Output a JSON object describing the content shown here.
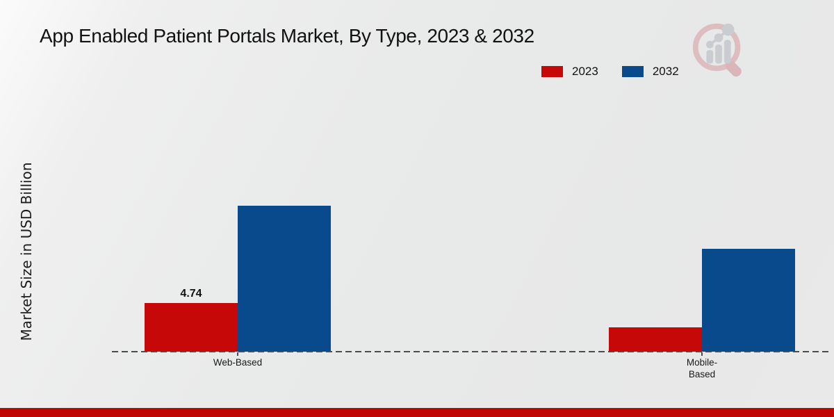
{
  "title": "App Enabled Patient Portals Market, By Type, 2023 & 2032",
  "ylabel": "Market Size in USD Billion",
  "legend": {
    "items": [
      {
        "label": "2023",
        "color": "#c70808"
      },
      {
        "label": "2032",
        "color": "#084a8c"
      }
    ]
  },
  "icons": {
    "logo": "magnifier-bar-chart-watermark"
  },
  "colors": {
    "series_2023": "#c70808",
    "series_2032": "#084a8c",
    "footer_bar": "#c00505",
    "axis": "#4b4b4b"
  },
  "chart_data": {
    "type": "bar",
    "title": "App Enabled Patient Portals Market, By Type, 2023 & 2032",
    "ylabel": "Market Size in USD Billion",
    "xlabel": "",
    "categories": [
      "Web-Based",
      "Mobile-Based"
    ],
    "series": [
      {
        "name": "2023",
        "color": "#c70808",
        "values": [
          4.74,
          2.4
        ]
      },
      {
        "name": "2032",
        "color": "#084a8c",
        "values": [
          14.2,
          10.0
        ]
      }
    ],
    "value_labels": [
      {
        "series": "2023",
        "category": "Web-Based",
        "text": "4.74"
      }
    ],
    "ylim": [
      0,
      16
    ],
    "grid": false,
    "y_axis_ticks_visible": false,
    "legend_position": "top-right",
    "baseline_style": "dashed"
  }
}
